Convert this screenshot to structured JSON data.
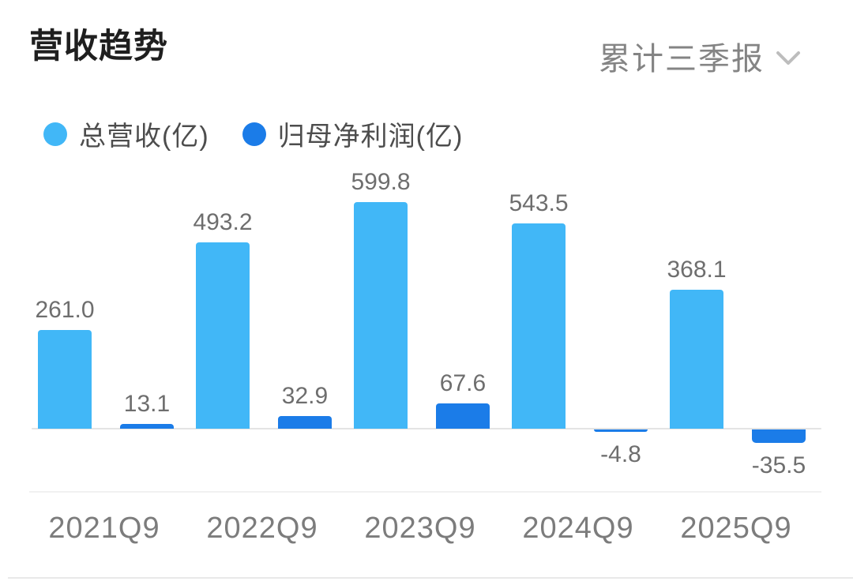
{
  "header": {
    "title": "营收趋势",
    "period_selector": {
      "selected": "累计三季报",
      "chevron_icon": "chevron-down-icon"
    }
  },
  "legend": [
    {
      "label": "总营收(亿)",
      "color": "#41B7F7"
    },
    {
      "label": "归母净利润(亿)",
      "color": "#1B7CE8"
    }
  ],
  "chart_data": {
    "type": "bar",
    "title": "营收趋势",
    "period": "累计三季报",
    "unit": "亿",
    "categories": [
      "2021Q9",
      "2022Q9",
      "2023Q9",
      "2024Q9",
      "2025Q9"
    ],
    "series": [
      {
        "name": "总营收(亿)",
        "color": "#41B7F7",
        "values": [
          261.0,
          493.2,
          599.8,
          543.5,
          368.1
        ]
      },
      {
        "name": "归母净利润(亿)",
        "color": "#1B7CE8",
        "values": [
          13.1,
          32.9,
          67.6,
          -4.8,
          -35.5
        ]
      }
    ],
    "value_labels": [
      [
        "261.0",
        "493.2",
        "599.8",
        "543.5",
        "368.1"
      ],
      [
        "13.1",
        "32.9",
        "67.6",
        "-4.8",
        "-35.5"
      ]
    ],
    "xlabel": "",
    "ylabel": "",
    "ylim": [
      -60,
      650
    ],
    "grid": false,
    "legend_position": "top",
    "baseline_value": 0
  },
  "colors": {
    "revenue_bar": "#41B7F7",
    "profit_bar": "#1B7CE8",
    "title_text": "#1f1f1f",
    "legend_text": "#4d4d4d",
    "value_label_text": "#6e6e6e",
    "axis_label_text": "#7c7c7c",
    "dropdown_text": "#848484",
    "chevron": "#bdbdbd",
    "baseline": "#e4e4e4",
    "background": "#ffffff"
  }
}
